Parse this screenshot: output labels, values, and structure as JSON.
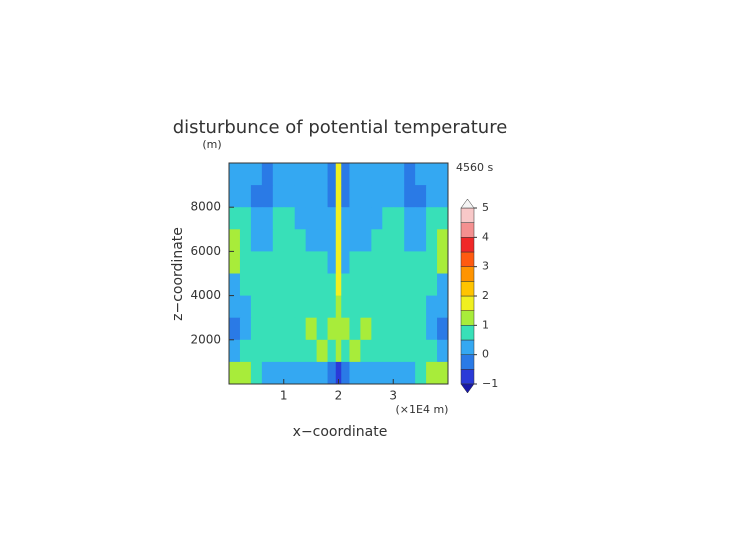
{
  "chart_data": {
    "type": "contour",
    "title": "disturbunce of potential temperature",
    "y_unit": "(m)",
    "time_label": "4560 s",
    "x_label": "x−coordinate",
    "y_label": "z−coordinate",
    "x_unit": "(×1E4 m)",
    "xlim": [
      0,
      40000
    ],
    "ylim": [
      0,
      10000
    ],
    "xticks": [
      {
        "value": 10000,
        "label": "1"
      },
      {
        "value": 20000,
        "label": "2"
      },
      {
        "value": 30000,
        "label": "3"
      }
    ],
    "yticks": [
      2000,
      4000,
      6000,
      8000
    ],
    "x": [
      1000,
      3000,
      5000,
      7000,
      9000,
      11000,
      13000,
      15000,
      17000,
      19000,
      20000,
      21000,
      23000,
      25000,
      27000,
      29000,
      31000,
      33000,
      35000,
      37000,
      39000
    ],
    "z": [
      9500,
      8500,
      7500,
      6500,
      5500,
      4500,
      3500,
      2500,
      1500,
      500
    ],
    "values": [
      [
        0.3,
        0.2,
        0.0,
        -0.2,
        0.0,
        0.3,
        0.3,
        0.3,
        0.2,
        -0.3,
        1.8,
        -0.3,
        0.2,
        0.3,
        0.3,
        0.3,
        0.0,
        -0.2,
        0.0,
        0.2,
        0.3
      ],
      [
        0.3,
        0.0,
        -0.2,
        -0.2,
        0.0,
        0.3,
        0.3,
        0.3,
        0.3,
        -0.3,
        1.8,
        -0.3,
        0.3,
        0.3,
        0.3,
        0.3,
        0.0,
        -0.2,
        -0.2,
        0.0,
        0.3
      ],
      [
        0.8,
        0.8,
        0.3,
        0.3,
        0.8,
        0.8,
        0.3,
        0.3,
        0.3,
        0.2,
        1.8,
        0.2,
        0.3,
        0.3,
        0.3,
        0.8,
        0.8,
        0.3,
        0.3,
        0.8,
        0.8
      ],
      [
        1.3,
        0.8,
        0.3,
        0.3,
        0.8,
        0.8,
        0.8,
        0.3,
        0.3,
        0.3,
        1.8,
        0.3,
        0.3,
        0.3,
        0.8,
        0.8,
        0.8,
        0.3,
        0.3,
        0.8,
        1.3
      ],
      [
        1.3,
        0.8,
        0.8,
        0.8,
        0.8,
        0.8,
        0.8,
        0.8,
        0.8,
        0.3,
        1.8,
        0.3,
        0.8,
        0.8,
        0.8,
        0.8,
        0.8,
        0.8,
        0.8,
        0.8,
        1.3
      ],
      [
        0.3,
        0.8,
        0.8,
        0.8,
        0.8,
        0.8,
        0.8,
        0.8,
        0.8,
        0.8,
        1.8,
        0.8,
        0.8,
        0.8,
        0.8,
        0.8,
        0.8,
        0.8,
        0.8,
        0.8,
        0.3
      ],
      [
        0.3,
        0.3,
        0.8,
        0.8,
        0.8,
        0.8,
        0.8,
        0.8,
        0.8,
        0.8,
        1.3,
        0.8,
        0.8,
        0.8,
        0.8,
        0.8,
        0.8,
        0.8,
        0.8,
        0.3,
        0.3
      ],
      [
        -0.3,
        0.3,
        0.8,
        0.8,
        0.8,
        0.8,
        0.8,
        1.3,
        0.8,
        1.3,
        1.3,
        1.3,
        0.8,
        1.3,
        0.8,
        0.8,
        0.8,
        0.8,
        0.8,
        0.3,
        -0.3
      ],
      [
        0.3,
        0.8,
        0.8,
        0.8,
        0.8,
        0.8,
        0.8,
        0.8,
        1.3,
        0.8,
        1.3,
        0.8,
        1.3,
        0.8,
        0.8,
        0.8,
        0.8,
        0.8,
        0.8,
        0.8,
        0.3
      ],
      [
        1.3,
        1.3,
        0.8,
        0.3,
        0.3,
        0.3,
        0.3,
        0.3,
        0.3,
        -0.3,
        -0.8,
        -0.3,
        0.3,
        0.3,
        0.3,
        0.3,
        0.3,
        0.3,
        0.8,
        1.3,
        1.3
      ]
    ],
    "levels": [
      -1,
      -0.5,
      0,
      0.5,
      1,
      1.5,
      2,
      2.5,
      3,
      3.5,
      4,
      4.5,
      5
    ],
    "colors": [
      "#2a3ad8",
      "#2a7ae6",
      "#34a8f2",
      "#38e0b8",
      "#a8ec3a",
      "#f0f020",
      "#ffc400",
      "#ff9400",
      "#ff5a10",
      "#f02828",
      "#f49090",
      "#f8c8c8"
    ],
    "under_color": "#1818a8",
    "over_color": "#f4f4f4",
    "cbar_ticks": [
      {
        "value": -1,
        "label": "−1"
      },
      0,
      1,
      2,
      3,
      4,
      5
    ]
  }
}
